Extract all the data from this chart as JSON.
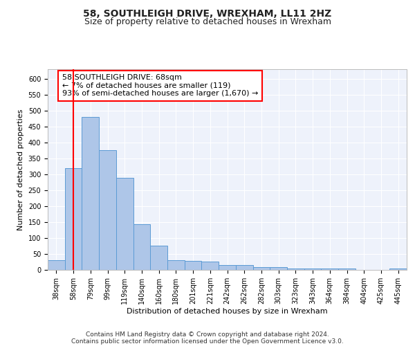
{
  "title": "58, SOUTHLEIGH DRIVE, WREXHAM, LL11 2HZ",
  "subtitle": "Size of property relative to detached houses in Wrexham",
  "xlabel": "Distribution of detached houses by size in Wrexham",
  "ylabel": "Number of detached properties",
  "bar_labels": [
    "38sqm",
    "58sqm",
    "79sqm",
    "99sqm",
    "119sqm",
    "140sqm",
    "160sqm",
    "180sqm",
    "201sqm",
    "221sqm",
    "242sqm",
    "262sqm",
    "282sqm",
    "303sqm",
    "323sqm",
    "343sqm",
    "364sqm",
    "384sqm",
    "404sqm",
    "425sqm",
    "445sqm"
  ],
  "bar_values": [
    30,
    320,
    480,
    375,
    290,
    143,
    75,
    30,
    28,
    26,
    15,
    15,
    8,
    8,
    5,
    5,
    5,
    5,
    0,
    0,
    5
  ],
  "bar_color": "#aec6e8",
  "bar_edge_color": "#5b9bd5",
  "vline_x": 1,
  "vline_color": "red",
  "annotation_text": "58 SOUTHLEIGH DRIVE: 68sqm\n← 7% of detached houses are smaller (119)\n93% of semi-detached houses are larger (1,670) →",
  "annotation_box_color": "white",
  "annotation_box_edge_color": "red",
  "ylim": [
    0,
    630
  ],
  "yticks": [
    0,
    50,
    100,
    150,
    200,
    250,
    300,
    350,
    400,
    450,
    500,
    550,
    600
  ],
  "footer_line1": "Contains HM Land Registry data © Crown copyright and database right 2024.",
  "footer_line2": "Contains public sector information licensed under the Open Government Licence v3.0.",
  "background_color": "#eef2fb",
  "grid_color": "#ffffff",
  "title_fontsize": 10,
  "subtitle_fontsize": 9,
  "axis_label_fontsize": 8,
  "tick_fontsize": 7,
  "annotation_fontsize": 8,
  "footer_fontsize": 6.5
}
